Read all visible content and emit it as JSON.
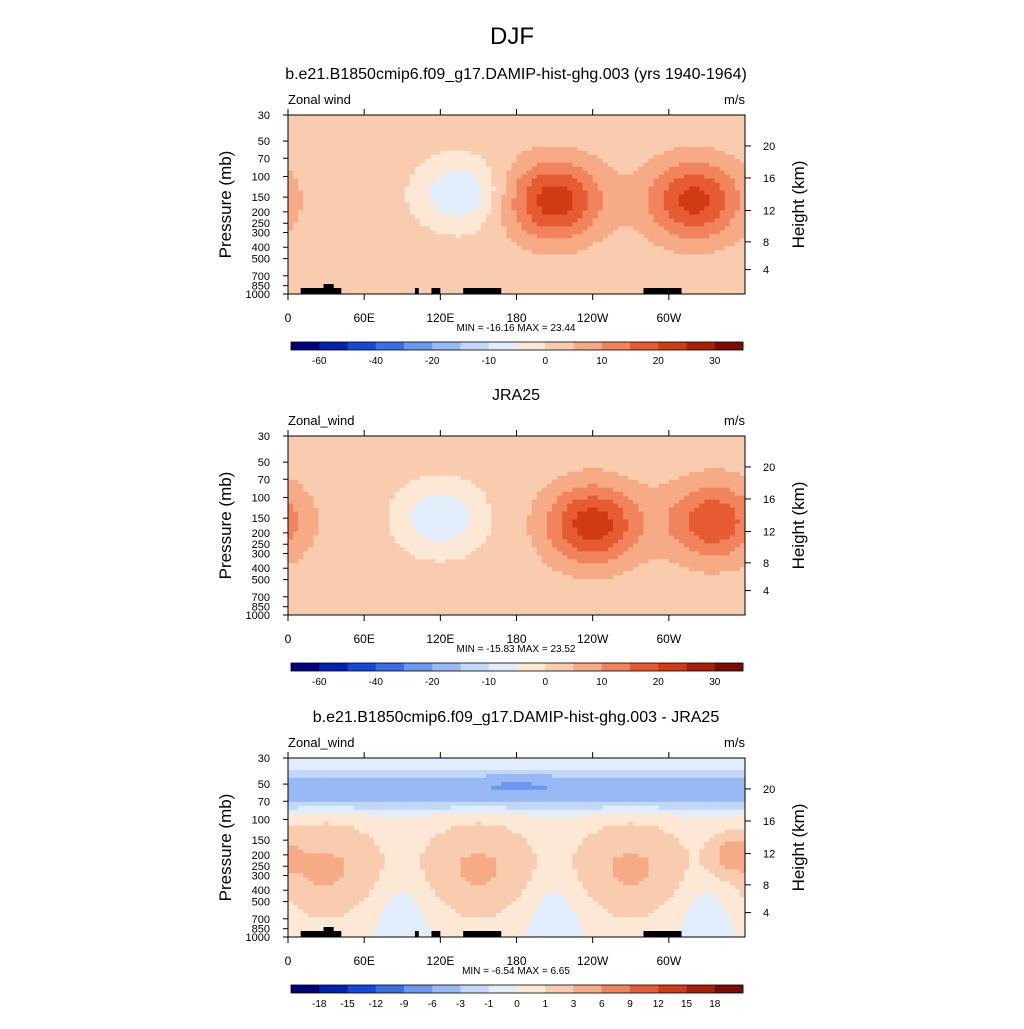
{
  "page_title": "DJF",
  "colors": {
    "wind_scale": [
      "#00007f",
      "#0022b0",
      "#1548d8",
      "#3a6fe6",
      "#6b98ef",
      "#98b9f4",
      "#c2d8fa",
      "#e2edfc",
      "#fde8d6",
      "#f9ccb0",
      "#f6aa85",
      "#f1845d",
      "#e65a34",
      "#d03a15",
      "#a8200a",
      "#7a0c04"
    ],
    "diff_scale": [
      "#00007f",
      "#0022b0",
      "#1548d8",
      "#3a6fe6",
      "#6b98ef",
      "#98b9f4",
      "#c2d8fa",
      "#e2edfc",
      "#fde8d6",
      "#f9ccb0",
      "#f6aa85",
      "#f1845d",
      "#e65a34",
      "#d03a15",
      "#a8200a",
      "#7a0c04"
    ],
    "topography": "#000000"
  },
  "chart_data": [
    {
      "type": "heatmap",
      "title": "b.e21.B1850cmip6.f09_g17.DAMIP-hist-ghg.003 (yrs 1940-1964)",
      "left_label": "Zonal wind",
      "right_label": "m/s",
      "ylabel": "Pressure (mb)",
      "ylabel_right": "Height (km)",
      "x_ticks": [
        "0",
        "60E",
        "120E",
        "180",
        "120W",
        "60W"
      ],
      "x_range": [
        0,
        360
      ],
      "y_ticks": [
        "30",
        "50",
        "70",
        "100",
        "150",
        "200",
        "250",
        "300",
        "400",
        "500",
        "700",
        "850",
        "1000"
      ],
      "y_right_ticks": [
        "20",
        "16",
        "12",
        "8",
        "4"
      ],
      "ylim": [
        1000,
        30
      ],
      "stats": "MIN = -16.16  MAX =  23.44",
      "min": -16.16,
      "max": 23.44,
      "colorbar_labels": [
        "-60",
        "-40",
        "-20",
        "-10",
        "0",
        "10",
        "20",
        "30"
      ],
      "colorbar_levels": [
        -70,
        -60,
        -50,
        -40,
        -30,
        -20,
        -15,
        -10,
        -5,
        0,
        5,
        10,
        15,
        20,
        25,
        30,
        35
      ],
      "has_topography": true,
      "features": [
        {
          "lon": 135,
          "p": 140,
          "value": -12,
          "description": "easterly minimum"
        },
        {
          "lon": 210,
          "p": 160,
          "value": 23,
          "description": "westerly jet"
        },
        {
          "lon": 320,
          "p": 160,
          "value": 22,
          "description": "westerly jet"
        }
      ]
    },
    {
      "type": "heatmap",
      "title": "JRA25",
      "left_label": "Zonal_wind",
      "right_label": "m/s",
      "ylabel": "Pressure (mb)",
      "ylabel_right": "Height (km)",
      "x_ticks": [
        "0",
        "60E",
        "120E",
        "180",
        "120W",
        "60W"
      ],
      "x_range": [
        0,
        360
      ],
      "y_ticks": [
        "30",
        "50",
        "70",
        "100",
        "150",
        "200",
        "250",
        "300",
        "400",
        "500",
        "700",
        "850",
        "1000"
      ],
      "y_right_ticks": [
        "20",
        "16",
        "12",
        "8",
        "4"
      ],
      "ylim": [
        1000,
        30
      ],
      "stats": "MIN = -15.83  MAX =  23.52",
      "min": -15.83,
      "max": 23.52,
      "colorbar_labels": [
        "-60",
        "-40",
        "-20",
        "-10",
        "0",
        "10",
        "20",
        "30"
      ],
      "colorbar_levels": [
        -70,
        -60,
        -50,
        -40,
        -30,
        -20,
        -15,
        -10,
        -5,
        0,
        5,
        10,
        15,
        20,
        25,
        30,
        35
      ],
      "has_topography": false,
      "features": [
        {
          "lon": 120,
          "p": 150,
          "value": -12,
          "description": "easterly minimum"
        },
        {
          "lon": 240,
          "p": 170,
          "value": 23,
          "description": "westerly jet"
        },
        {
          "lon": 335,
          "p": 160,
          "value": 19,
          "description": "westerly jet"
        }
      ]
    },
    {
      "type": "heatmap",
      "title": "b.e21.B1850cmip6.f09_g17.DAMIP-hist-ghg.003 - JRA25",
      "left_label": "Zonal_wind",
      "right_label": "m/s",
      "ylabel": "Pressure (mb)",
      "ylabel_right": "Height (km)",
      "x_ticks": [
        "0",
        "60E",
        "120E",
        "180",
        "120W",
        "60W"
      ],
      "x_range": [
        0,
        360
      ],
      "y_ticks": [
        "30",
        "50",
        "70",
        "100",
        "150",
        "200",
        "250",
        "300",
        "400",
        "500",
        "700",
        "850",
        "1000"
      ],
      "y_right_ticks": [
        "20",
        "16",
        "12",
        "8",
        "4"
      ],
      "ylim": [
        1000,
        30
      ],
      "stats": "MIN = -6.54  MAX =  6.65",
      "min": -6.54,
      "max": 6.65,
      "colorbar_labels": [
        "-18",
        "-15",
        "-12",
        "-9",
        "-6",
        "-3",
        "-1",
        "0",
        "1",
        "3",
        "6",
        "9",
        "12",
        "15",
        "18"
      ],
      "colorbar_levels": [
        -21,
        -18,
        -15,
        -12,
        -9,
        -6,
        -3,
        -1,
        0,
        1,
        3,
        6,
        9,
        12,
        15,
        18,
        21
      ],
      "has_topography": true,
      "features": [
        {
          "lon": 180,
          "p": 50,
          "value": -6.5,
          "description": "negative band aloft"
        },
        {
          "lon": 350,
          "p": 200,
          "value": 6.6,
          "description": "positive maximum"
        }
      ]
    }
  ]
}
